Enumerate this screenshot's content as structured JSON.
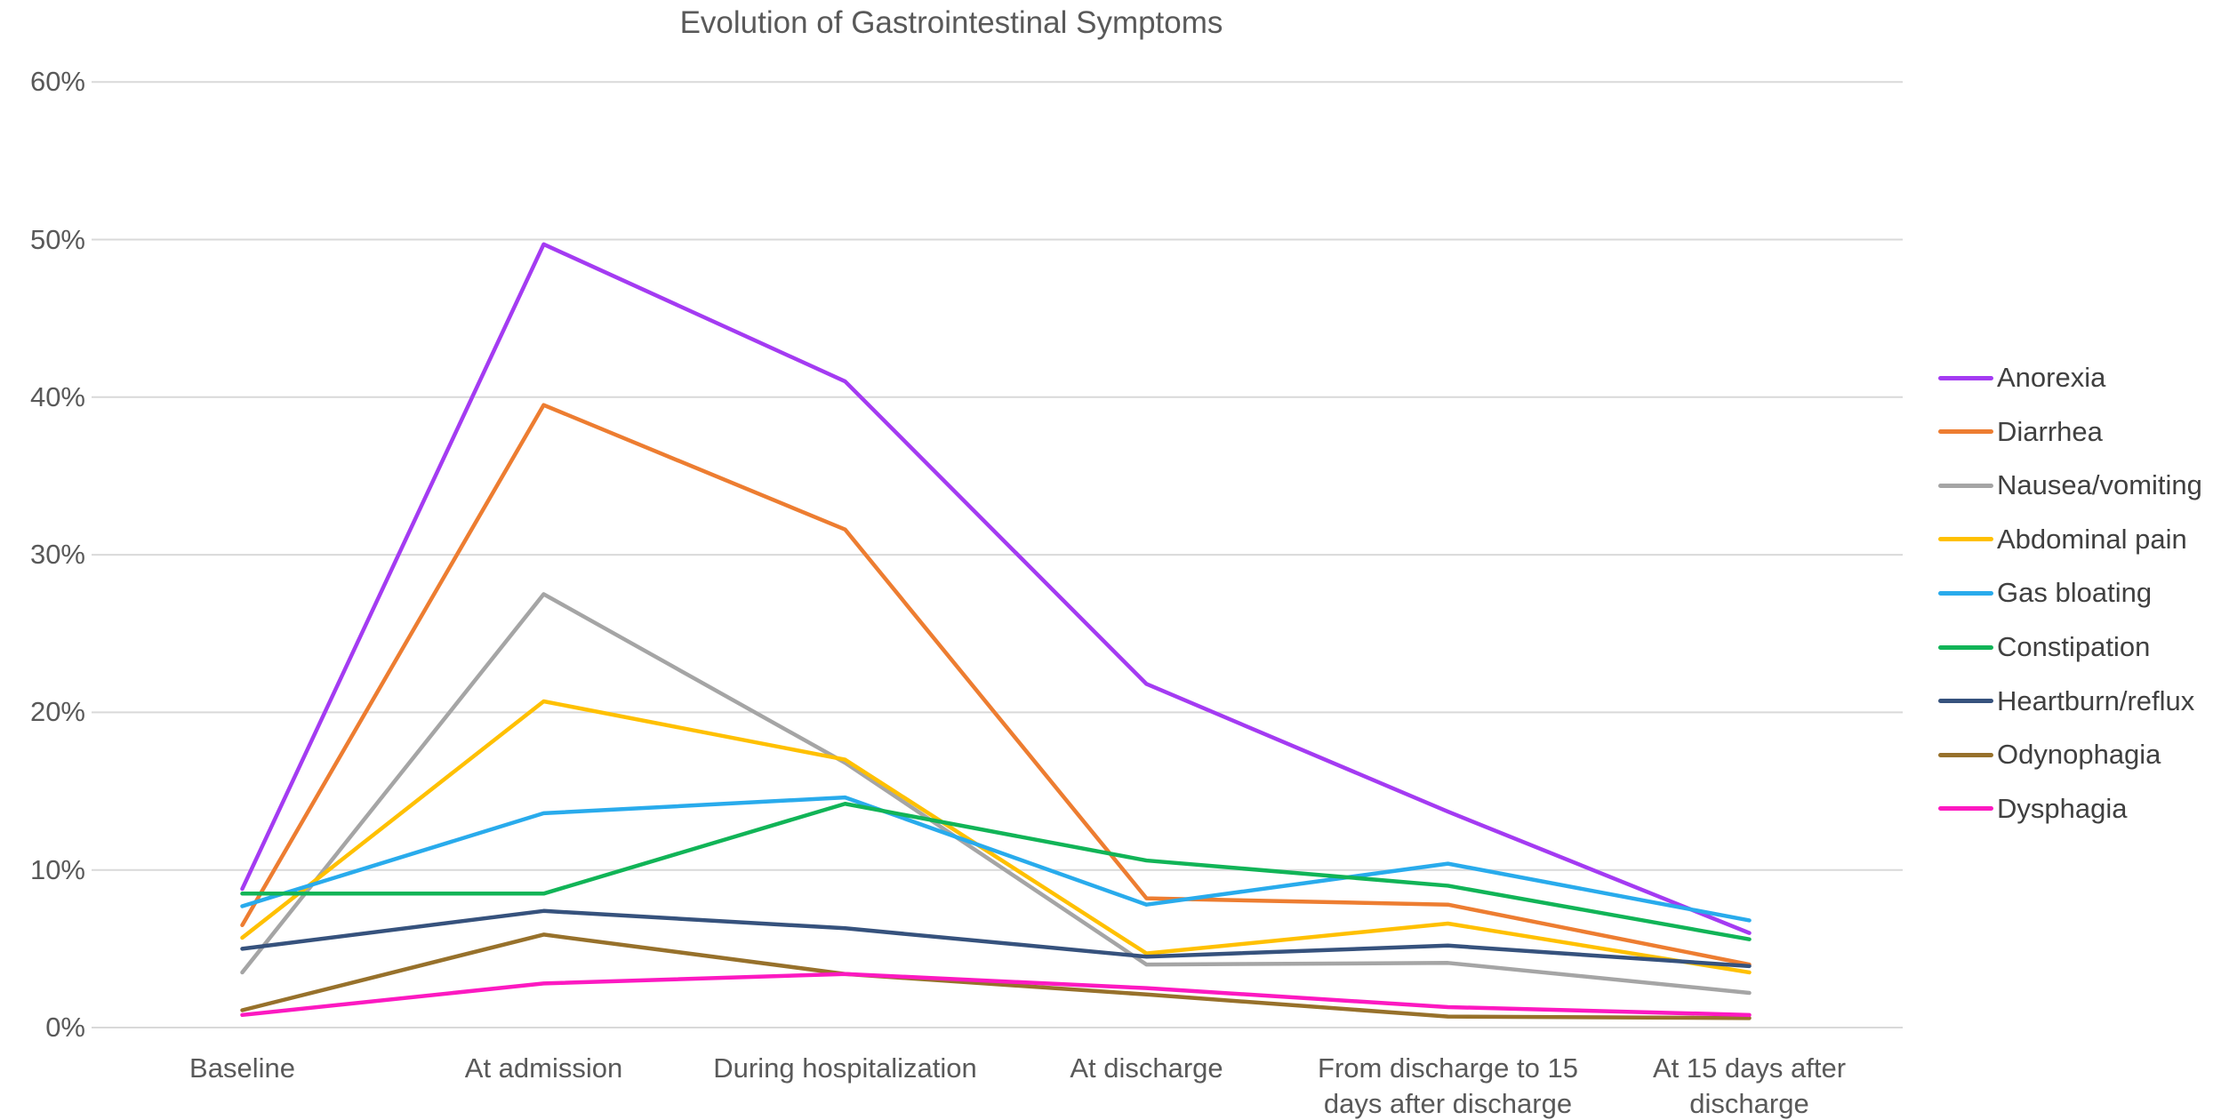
{
  "chart_data": {
    "type": "line",
    "title": "Evolution of Gastrointestinal Symptoms",
    "categories": [
      "Baseline",
      "At admission",
      "During hospitalization",
      "At discharge",
      "From discharge to 15\ndays after discharge",
      "At 15 days after\ndischarge"
    ],
    "y_ticks": [
      "0%",
      "10%",
      "20%",
      "30%",
      "40%",
      "50%",
      "60%"
    ],
    "ylim": [
      0,
      60
    ],
    "xlabel": "",
    "ylabel": "",
    "grid": "horizontal",
    "gridline_color": "#d9d9d9",
    "legend_position": "right",
    "series": [
      {
        "name": "Anorexia",
        "color": "#a43bf2",
        "values": [
          8.8,
          49.7,
          41.0,
          21.8,
          13.7,
          6.0
        ]
      },
      {
        "name": "Diarrhea",
        "color": "#ed7d31",
        "values": [
          6.5,
          39.5,
          31.6,
          8.2,
          7.8,
          4.0
        ]
      },
      {
        "name": "Nausea/vomiting",
        "color": "#a5a5a5",
        "values": [
          3.5,
          27.5,
          16.8,
          4.0,
          4.1,
          2.2
        ]
      },
      {
        "name": "Abdominal pain",
        "color": "#ffc000",
        "values": [
          5.7,
          20.7,
          17.0,
          4.7,
          6.6,
          3.5
        ]
      },
      {
        "name": "Gas bloating",
        "color": "#29abec",
        "values": [
          7.7,
          13.6,
          14.6,
          7.8,
          10.4,
          6.8
        ]
      },
      {
        "name": "Constipation",
        "color": "#11b457",
        "values": [
          8.5,
          8.5,
          14.2,
          10.6,
          9.0,
          5.6
        ]
      },
      {
        "name": "Heartburn/reflux",
        "color": "#36527d",
        "values": [
          5.0,
          7.4,
          6.3,
          4.5,
          5.2,
          3.9
        ]
      },
      {
        "name": "Odynophagia",
        "color": "#97712b",
        "values": [
          1.1,
          5.9,
          3.4,
          2.1,
          0.7,
          0.6
        ]
      },
      {
        "name": "Dysphagia",
        "color": "#fc19c1",
        "values": [
          0.8,
          2.8,
          3.4,
          2.5,
          1.3,
          0.8
        ]
      }
    ]
  }
}
